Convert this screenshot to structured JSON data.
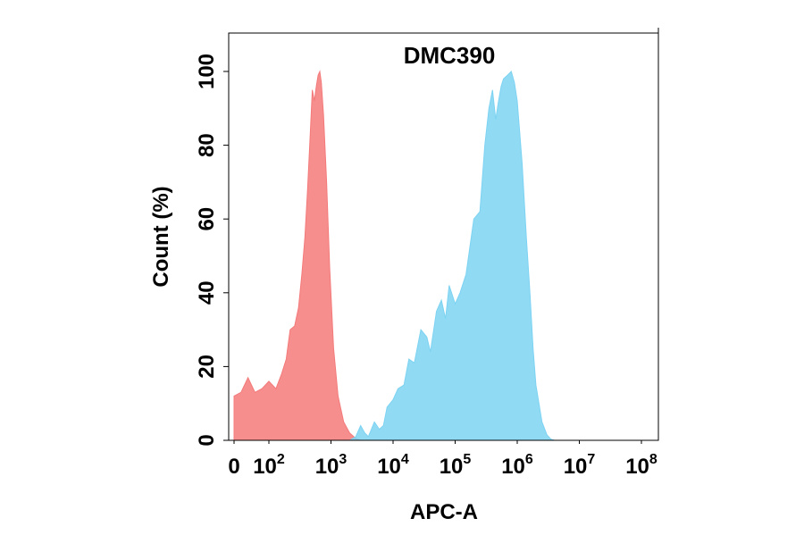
{
  "chart_data": {
    "type": "area",
    "title": "DMC390",
    "xlabel": "APC-A",
    "ylabel": "Count  (%)",
    "x_scale": "biexponential",
    "xlim": [
      0,
      100000000
    ],
    "ylim": [
      0,
      100
    ],
    "grid": false,
    "legend": "none",
    "x_ticks": [
      {
        "value": 0,
        "base": "0",
        "exp": ""
      },
      {
        "value": 100,
        "base": "10",
        "exp": "2"
      },
      {
        "value": 1000,
        "base": "10",
        "exp": "3"
      },
      {
        "value": 10000,
        "base": "10",
        "exp": "4"
      },
      {
        "value": 100000,
        "base": "10",
        "exp": "5"
      },
      {
        "value": 1000000,
        "base": "10",
        "exp": "6"
      },
      {
        "value": 10000000,
        "base": "10",
        "exp": "7"
      },
      {
        "value": 100000000,
        "base": "10",
        "exp": "8"
      }
    ],
    "y_ticks": [
      0,
      20,
      40,
      60,
      80,
      100
    ],
    "series": [
      {
        "color": "#f47a7a",
        "points": [
          [
            0,
            12
          ],
          [
            20,
            13
          ],
          [
            40,
            17
          ],
          [
            60,
            13
          ],
          [
            80,
            14
          ],
          [
            100,
            16
          ],
          [
            130,
            14
          ],
          [
            160,
            18
          ],
          [
            190,
            22
          ],
          [
            220,
            30
          ],
          [
            260,
            31
          ],
          [
            300,
            36
          ],
          [
            340,
            45
          ],
          [
            380,
            55
          ],
          [
            420,
            68
          ],
          [
            460,
            82
          ],
          [
            500,
            95
          ],
          [
            540,
            92
          ],
          [
            580,
            96
          ],
          [
            620,
            99
          ],
          [
            660,
            100
          ],
          [
            700,
            97
          ],
          [
            760,
            88
          ],
          [
            850,
            70
          ],
          [
            950,
            47
          ],
          [
            1100,
            25
          ],
          [
            1300,
            12
          ],
          [
            1600,
            5
          ],
          [
            2000,
            2
          ],
          [
            2500,
            0.5
          ],
          [
            3000,
            0
          ]
        ]
      },
      {
        "color": "#7dd3f2",
        "points": [
          [
            2000,
            0
          ],
          [
            2500,
            1
          ],
          [
            3000,
            4
          ],
          [
            3500,
            2
          ],
          [
            4000,
            1
          ],
          [
            5000,
            5
          ],
          [
            6000,
            3
          ],
          [
            7000,
            4
          ],
          [
            8000,
            9
          ],
          [
            10000,
            11
          ],
          [
            12000,
            14
          ],
          [
            15000,
            15
          ],
          [
            18000,
            22
          ],
          [
            22000,
            21
          ],
          [
            28000,
            30
          ],
          [
            35000,
            28
          ],
          [
            40000,
            24
          ],
          [
            50000,
            35
          ],
          [
            60000,
            38
          ],
          [
            70000,
            33
          ],
          [
            80000,
            42
          ],
          [
            100000,
            37
          ],
          [
            120000,
            40
          ],
          [
            150000,
            45
          ],
          [
            200000,
            60
          ],
          [
            250000,
            62
          ],
          [
            300000,
            80
          ],
          [
            350000,
            90
          ],
          [
            400000,
            95
          ],
          [
            450000,
            87
          ],
          [
            500000,
            92
          ],
          [
            550000,
            96
          ],
          [
            600000,
            98
          ],
          [
            700000,
            99
          ],
          [
            800000,
            100
          ],
          [
            900000,
            97
          ],
          [
            1000000,
            92
          ],
          [
            1200000,
            75
          ],
          [
            1400000,
            55
          ],
          [
            1600000,
            40
          ],
          [
            1800000,
            25
          ],
          [
            2000000,
            15
          ],
          [
            2500000,
            5
          ],
          [
            3000000,
            1.5
          ],
          [
            3500000,
            0.3
          ],
          [
            4000000,
            0
          ]
        ]
      }
    ]
  }
}
